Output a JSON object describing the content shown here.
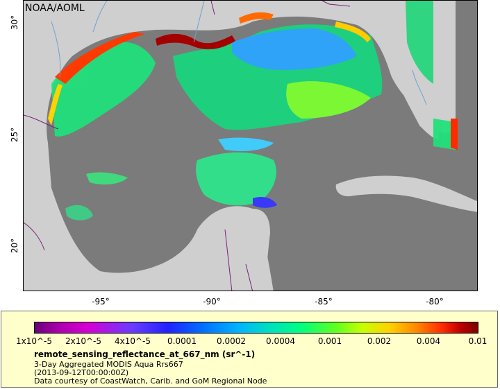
{
  "map": {
    "agency": "NOAA/AOML",
    "lat_ticks": [
      "30°",
      "25°",
      "20°"
    ],
    "lon_ticks": [
      "-95°",
      "-90°",
      "-85°",
      "-80°"
    ],
    "colors": {
      "land": "#cfcfcf",
      "ocean_nodata": "#7b7b7b",
      "rivers": "#6fa0d8",
      "borders": "#7b1f7b"
    }
  },
  "legend": {
    "colorbar_labels": [
      "1x10^-5",
      "2x10^-5",
      "4x10^-5",
      "0.0001",
      "0.0002",
      "0.0004",
      "0.001",
      "0.002",
      "0.004",
      "0.01"
    ],
    "variable": "remote_sensing_reflectance_at_667_nm (sr^-1)",
    "product": "3-Day Aggregated MODIS Aqua Rrs667",
    "time": "(2013-09-12T00:00:00Z)",
    "credit": "Data courtesy of CoastWatch, Carib. and GoM Regional Node"
  }
}
